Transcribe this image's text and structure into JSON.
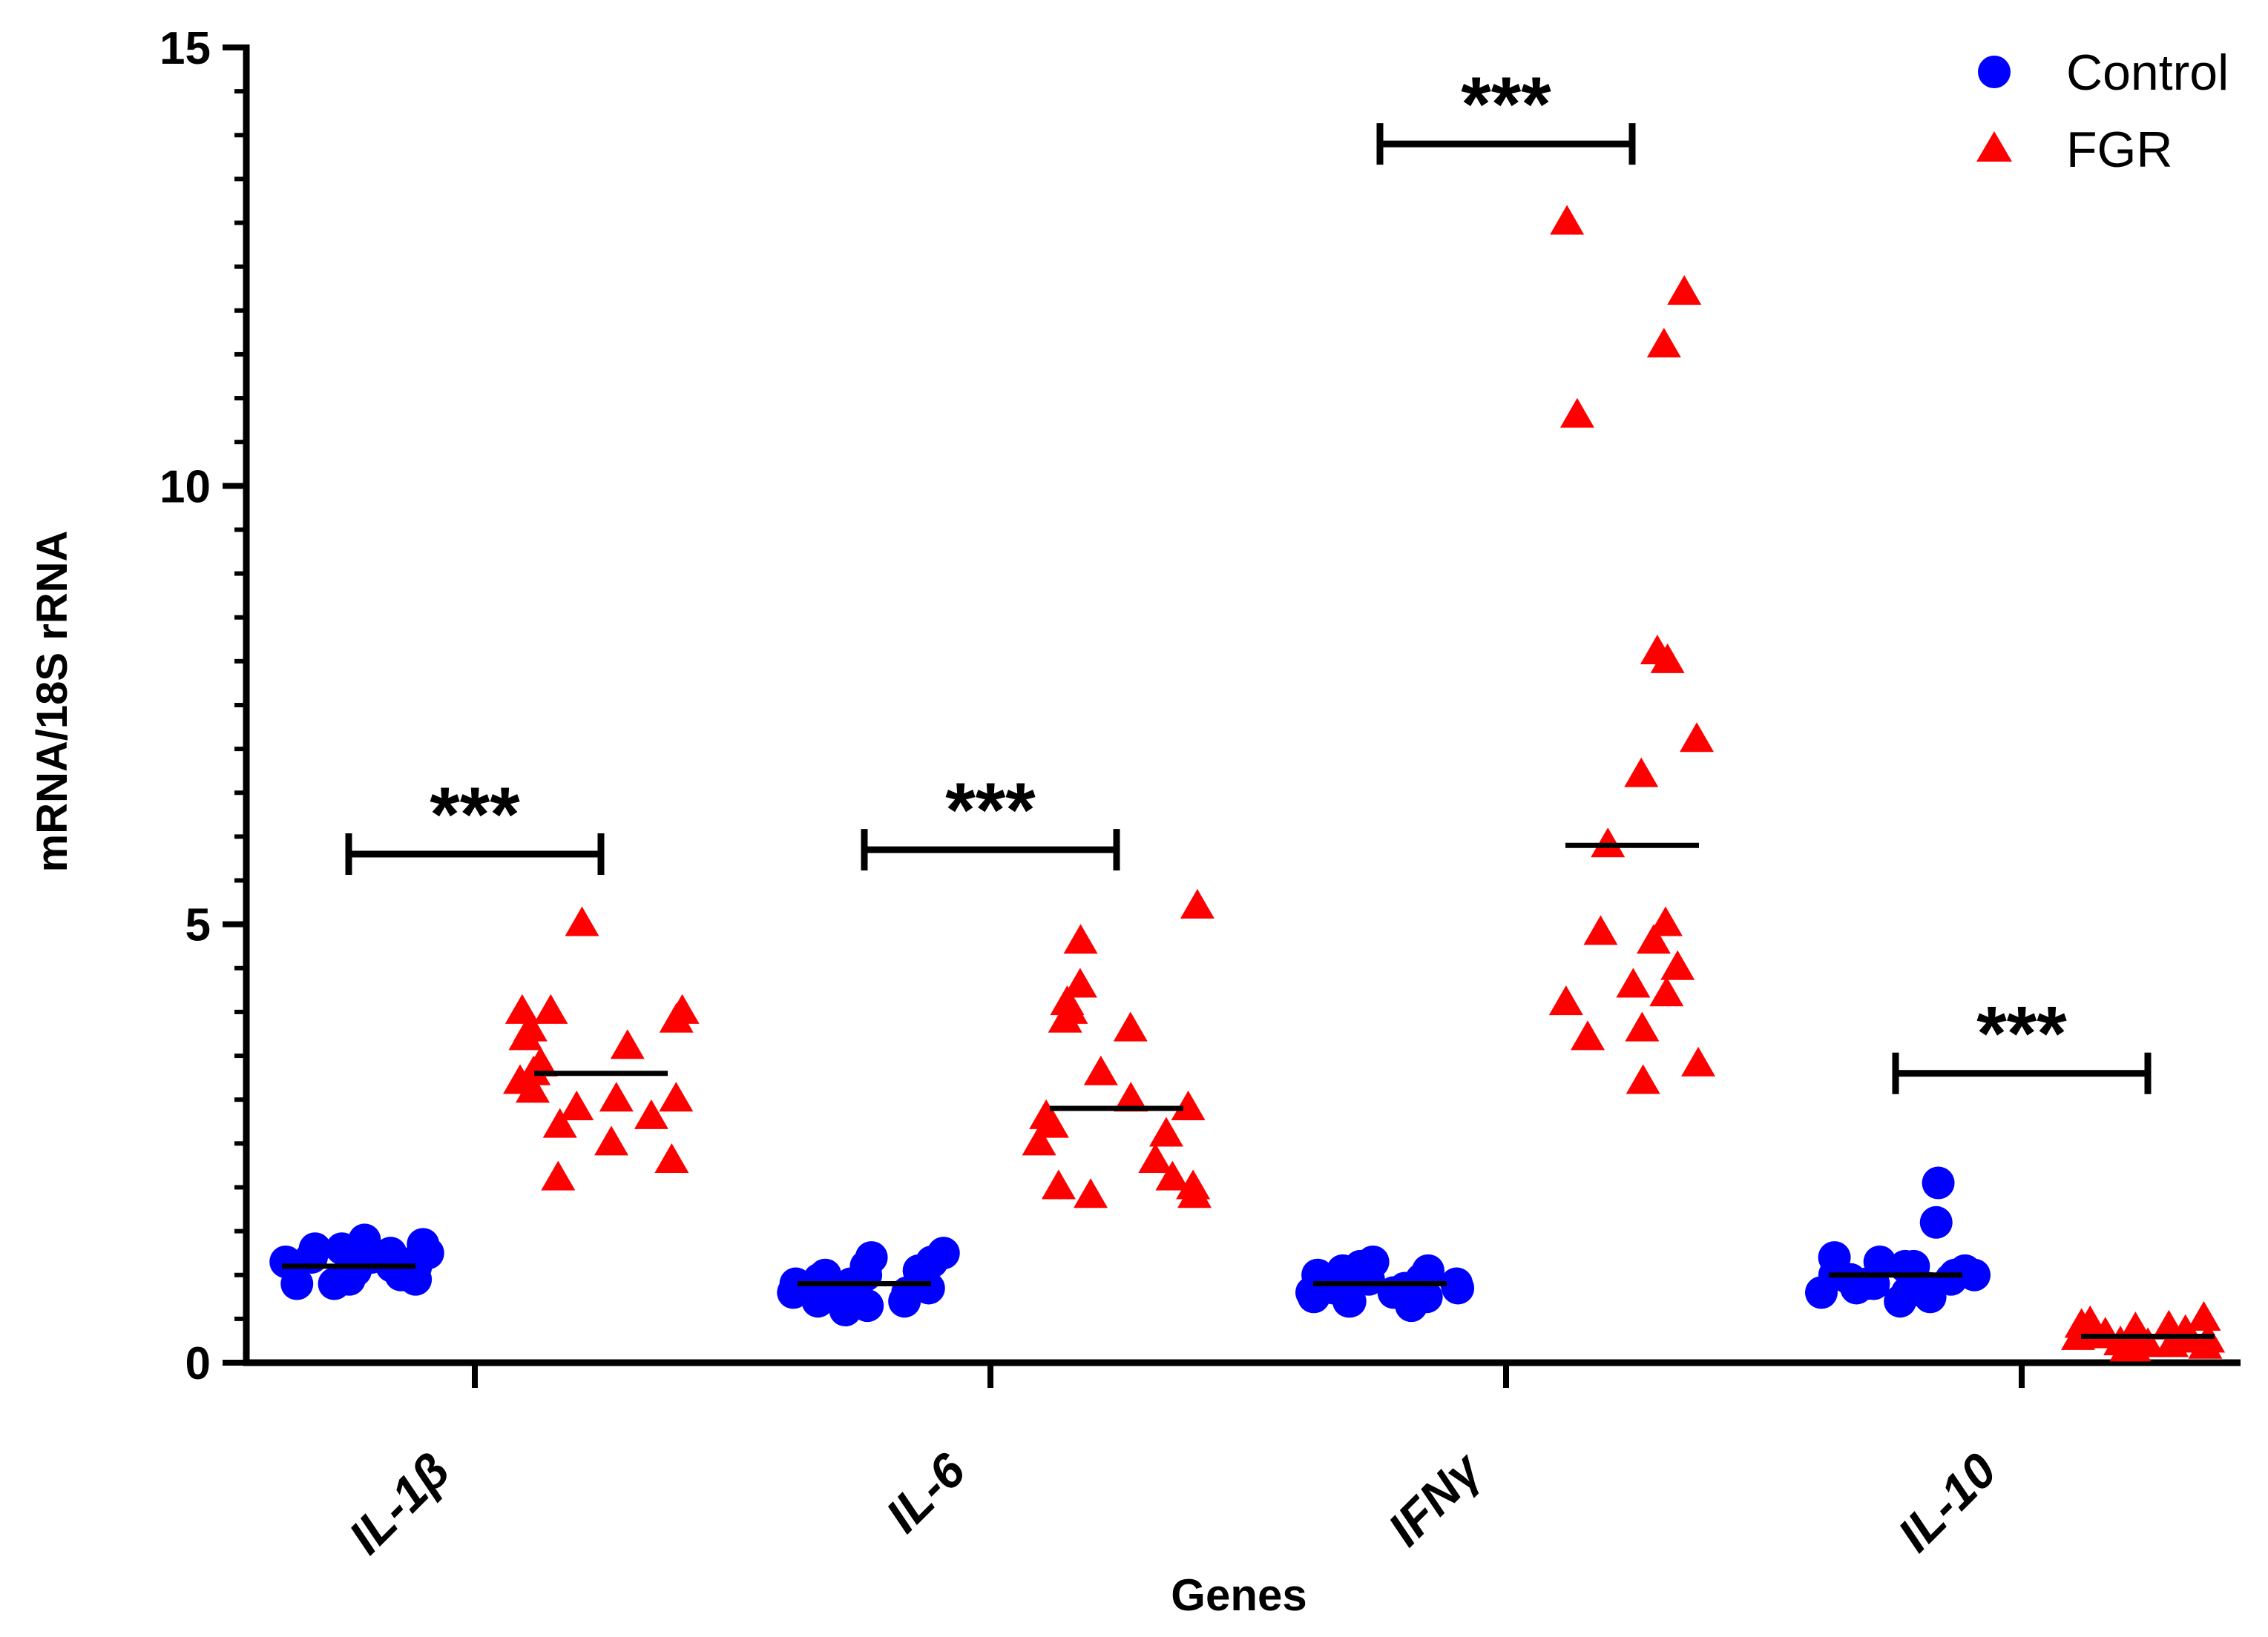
{
  "chart_data": {
    "type": "scatter",
    "title": "",
    "xlabel": "Genes",
    "ylabel": "mRNA/18S rRNA",
    "ylim": [
      0,
      15
    ],
    "yticks": [
      0,
      5,
      10,
      15
    ],
    "ytick_labels": [
      "0",
      "5",
      "10",
      "15"
    ],
    "minor_ticks_per_unit": 2,
    "grid": false,
    "legend_position": "top-right",
    "categories": [
      "IL-1β",
      "IL-6",
      "IFNγ",
      "IL-10"
    ],
    "significance_label": "***",
    "series": [
      {
        "name": "Control",
        "marker": "circle",
        "color": "#0000ff",
        "means": [
          1.1,
          0.9,
          0.9,
          1.0
        ],
        "values": [
          [
            0.9,
            0.95,
            1.0,
            1.05,
            1.1,
            1.15,
            1.2,
            1.25,
            1.3,
            1.35,
            1.4,
            1.0,
            1.1,
            1.2,
            1.3,
            0.95,
            1.05,
            1.15,
            1.25,
            0.9
          ],
          [
            0.6,
            0.65,
            0.7,
            0.75,
            0.8,
            0.85,
            0.9,
            0.95,
            1.0,
            1.05,
            1.1,
            1.15,
            1.2,
            1.25,
            0.7,
            0.8,
            0.9,
            1.0,
            0.75,
            0.85
          ],
          [
            0.65,
            0.7,
            0.75,
            0.8,
            0.85,
            0.9,
            0.95,
            1.0,
            1.05,
            1.1,
            1.15,
            0.75,
            0.85,
            0.95,
            1.05,
            0.8,
            0.9,
            1.0,
            0.7,
            0.85
          ],
          [
            0.7,
            0.75,
            0.8,
            0.85,
            0.9,
            0.95,
            1.0,
            1.05,
            1.1,
            1.15,
            1.2,
            0.8,
            0.9,
            1.0,
            1.1,
            0.85,
            0.95,
            1.6,
            2.05,
            1.0
          ]
        ]
      },
      {
        "name": "FGR",
        "marker": "triangle",
        "color": "#ff0000",
        "means": [
          3.3,
          2.9,
          5.9,
          0.3
        ],
        "values": [
          [
            2.1,
            2.3,
            2.5,
            2.7,
            2.8,
            2.9,
            3.0,
            3.1,
            3.2,
            3.3,
            3.4,
            3.6,
            3.7,
            3.8,
            3.9,
            4.0,
            4.0,
            4.0,
            3.0,
            5.0
          ],
          [
            1.9,
            1.9,
            2.0,
            2.0,
            2.1,
            2.3,
            2.5,
            2.6,
            2.7,
            2.8,
            2.9,
            3.0,
            3.3,
            3.8,
            3.9,
            4.0,
            4.1,
            4.3,
            4.8,
            5.2
          ],
          [
            3.2,
            3.4,
            3.7,
            3.8,
            4.1,
            4.2,
            4.3,
            4.5,
            4.8,
            4.9,
            5.0,
            5.9,
            6.7,
            7.1,
            8.0,
            8.1,
            10.8,
            11.6,
            12.2,
            13.0
          ],
          [
            0.15,
            0.18,
            0.2,
            0.22,
            0.25,
            0.28,
            0.3,
            0.32,
            0.35,
            0.38,
            0.4,
            0.42,
            0.45,
            0.5,
            0.2,
            0.3,
            0.25,
            0.35,
            0.15,
            0.28
          ]
        ]
      }
    ],
    "significance": [
      {
        "category": "IL-1β",
        "label": "***",
        "bracket_y": 5.8
      },
      {
        "category": "IL-6",
        "label": "***",
        "bracket_y": 5.85
      },
      {
        "category": "IFNγ",
        "label": "***",
        "bracket_y": 13.9
      },
      {
        "category": "IL-10",
        "label": "***",
        "bracket_y": 3.3
      }
    ]
  }
}
